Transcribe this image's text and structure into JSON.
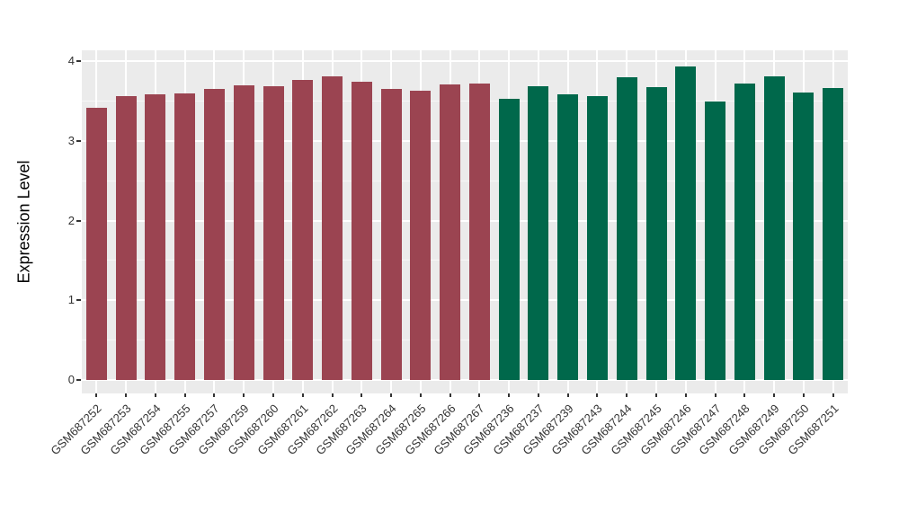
{
  "chart_data": {
    "type": "bar",
    "title": "",
    "xlabel": "",
    "ylabel": "Expression Level",
    "ylim": [
      0,
      4.15
    ],
    "y_ticks": [
      0,
      1,
      2,
      3,
      4
    ],
    "y_minor_ticks": [
      0.5,
      1.5,
      2.5,
      3.5
    ],
    "grid": "on",
    "legend": "none",
    "categories": [
      "GSM687252",
      "GSM687253",
      "GSM687254",
      "GSM687255",
      "GSM687257",
      "GSM687259",
      "GSM687260",
      "GSM687261",
      "GSM687262",
      "GSM687263",
      "GSM687264",
      "GSM687265",
      "GSM687266",
      "GSM687267",
      "GSM687236",
      "GSM687237",
      "GSM687239",
      "GSM687243",
      "GSM687244",
      "GSM687245",
      "GSM687246",
      "GSM687247",
      "GSM687248",
      "GSM687249",
      "GSM687250",
      "GSM687251"
    ],
    "values": [
      3.42,
      3.56,
      3.58,
      3.6,
      3.65,
      3.7,
      3.69,
      3.77,
      3.81,
      3.74,
      3.65,
      3.63,
      3.71,
      3.72,
      3.53,
      3.69,
      3.58,
      3.56,
      3.8,
      3.68,
      3.94,
      3.5,
      3.72,
      3.81,
      3.61,
      3.66
    ],
    "groups": [
      "a",
      "a",
      "a",
      "a",
      "a",
      "a",
      "a",
      "a",
      "a",
      "a",
      "a",
      "a",
      "a",
      "a",
      "b",
      "b",
      "b",
      "b",
      "b",
      "b",
      "b",
      "b",
      "b",
      "b",
      "b",
      "b"
    ],
    "group_colors": {
      "a": "#9B4451",
      "b": "#00684B"
    }
  },
  "colors": {
    "panel_background": "#EBEBEB",
    "grid_major": "#FFFFFF",
    "grid_minor": "rgba(255,255,255,0.65)",
    "tick_mark": "#333333",
    "tick_label": "#333333",
    "axis_title": "#000000",
    "figure_background": "#FFFFFF"
  }
}
